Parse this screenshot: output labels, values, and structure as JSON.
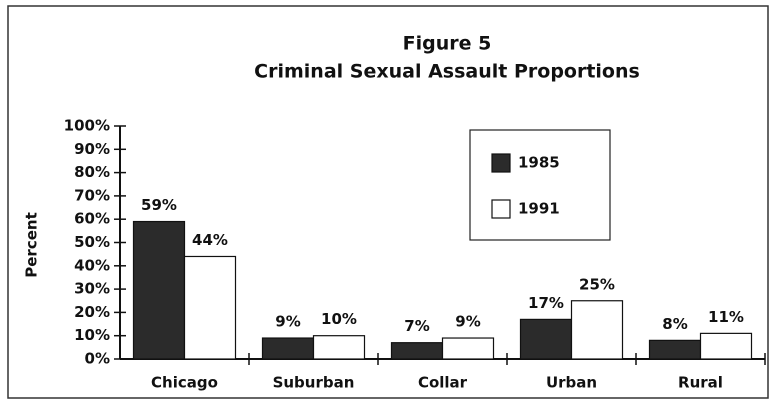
{
  "chart_data": {
    "type": "bar",
    "title": "Figure 5",
    "subtitle": "Criminal Sexual Assault Proportions",
    "y_label": "Percent",
    "categories": [
      "Chicago",
      "Suburban",
      "Collar",
      "Urban",
      "Rural"
    ],
    "series": [
      {
        "name": "1985",
        "color": "#2b2b2b",
        "values": [
          59,
          9,
          7,
          17,
          8
        ],
        "value_labels": [
          "59%",
          "9%",
          "7%",
          "17%",
          "8%"
        ]
      },
      {
        "name": "1991",
        "color": "#ffffff",
        "values": [
          44,
          10,
          9,
          25,
          11
        ],
        "value_labels": [
          "44%",
          "10%",
          "9%",
          "25%",
          "11%"
        ]
      }
    ],
    "ylim": [
      0,
      100
    ],
    "yticks": [
      {
        "value": 0,
        "label": "0%"
      },
      {
        "value": 10,
        "label": "10%"
      },
      {
        "value": 20,
        "label": "20%"
      },
      {
        "value": 30,
        "label": "30%"
      },
      {
        "value": 40,
        "label": "40%"
      },
      {
        "value": 50,
        "label": "50%"
      },
      {
        "value": 60,
        "label": "60%"
      },
      {
        "value": 70,
        "label": "70%"
      },
      {
        "value": 80,
        "label": "80%"
      },
      {
        "value": 90,
        "label": "90%"
      },
      {
        "value": 100,
        "label": "100%"
      }
    ],
    "legend": "upper-right"
  }
}
